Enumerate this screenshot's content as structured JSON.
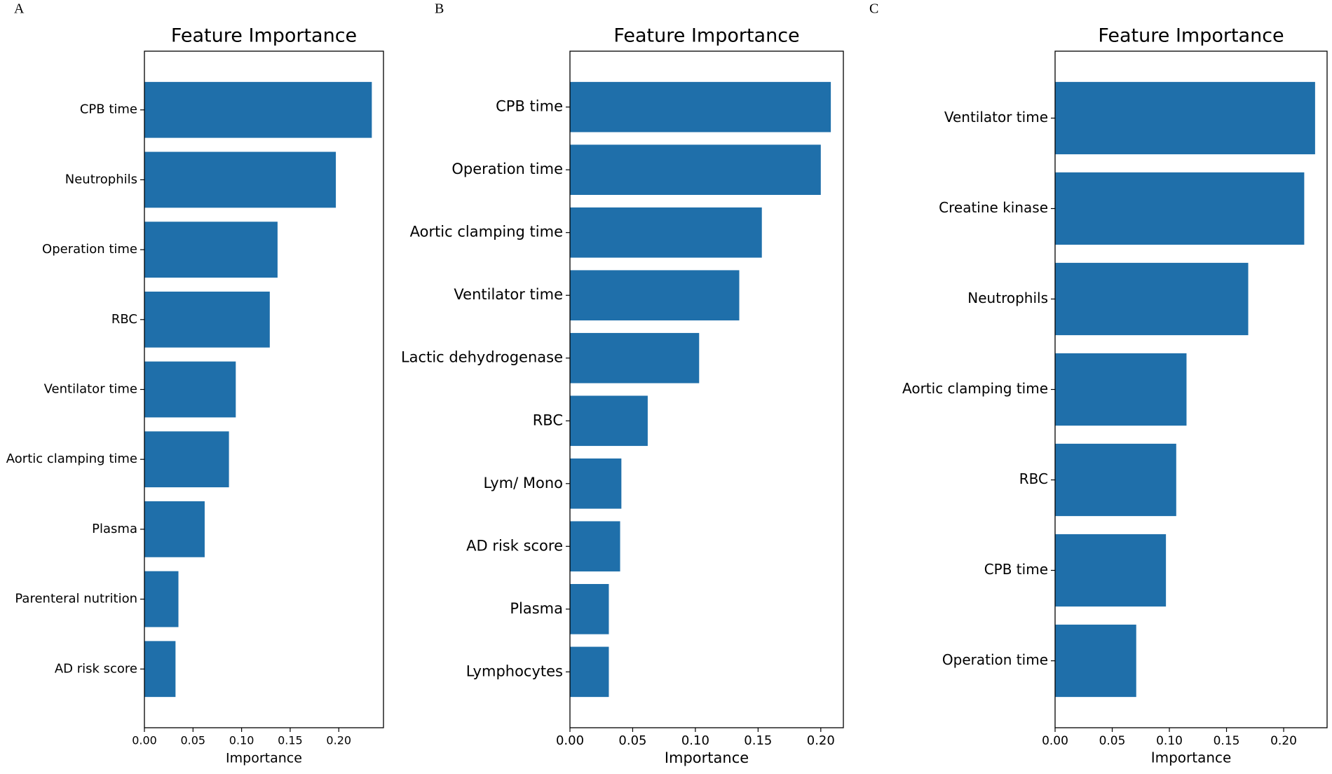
{
  "chart_data": [
    {
      "type": "barh",
      "panel": "A",
      "title": "Feature Importance",
      "x_label": "Importance",
      "color": "#1f6faa",
      "categories": [
        "CPB time",
        "Neutrophils",
        "Operation time",
        "RBC",
        "Ventilator time",
        "Aortic clamping time",
        "Plasma",
        "Parenteral nutrition",
        "AD risk score"
      ],
      "values": [
        0.234,
        0.197,
        0.137,
        0.129,
        0.094,
        0.087,
        0.062,
        0.035,
        0.032
      ],
      "xlim": [
        0,
        0.246
      ],
      "xticks": [
        {
          "value": 0,
          "label": "0.00"
        },
        {
          "value": 0.05,
          "label": "0.05"
        },
        {
          "value": 0.1,
          "label": "0.10"
        },
        {
          "value": 0.15,
          "label": "0.15"
        },
        {
          "value": 0.2,
          "label": "0.20"
        }
      ]
    },
    {
      "type": "barh",
      "panel": "B",
      "title": "Feature Importance",
      "x_label": "Importance",
      "color": "#1f6faa",
      "categories": [
        "CPB time",
        "Operation time",
        "Aortic clamping time",
        "Ventilator time",
        "Lactic dehydrogenase",
        "RBC",
        "Lym/ Mono",
        "AD risk score",
        "Plasma",
        "Lymphocytes"
      ],
      "values": [
        0.208,
        0.2,
        0.153,
        0.135,
        0.103,
        0.062,
        0.041,
        0.04,
        0.031,
        0.031
      ],
      "xlim": [
        0,
        0.218
      ],
      "xticks": [
        {
          "value": 0,
          "label": "0.00"
        },
        {
          "value": 0.05,
          "label": "0.05"
        },
        {
          "value": 0.1,
          "label": "0.10"
        },
        {
          "value": 0.15,
          "label": "0.15"
        },
        {
          "value": 0.2,
          "label": "0.20"
        }
      ]
    },
    {
      "type": "barh",
      "panel": "C",
      "title": "Feature Importance",
      "x_label": "Importance",
      "color": "#1f6faa",
      "categories": [
        "Ventilator time",
        "Creatine kinase",
        "Neutrophils",
        "Aortic clamping time",
        "RBC",
        "CPB time",
        "Operation time"
      ],
      "values": [
        0.2275,
        0.218,
        0.169,
        0.115,
        0.106,
        0.097,
        0.071
      ],
      "xlim": [
        0,
        0.238
      ],
      "xticks": [
        {
          "value": 0,
          "label": "0.00"
        },
        {
          "value": 0.05,
          "label": "0.05"
        },
        {
          "value": 0.1,
          "label": "0.10"
        },
        {
          "value": 0.15,
          "label": "0.15"
        },
        {
          "value": 0.2,
          "label": "0.20"
        }
      ]
    }
  ]
}
